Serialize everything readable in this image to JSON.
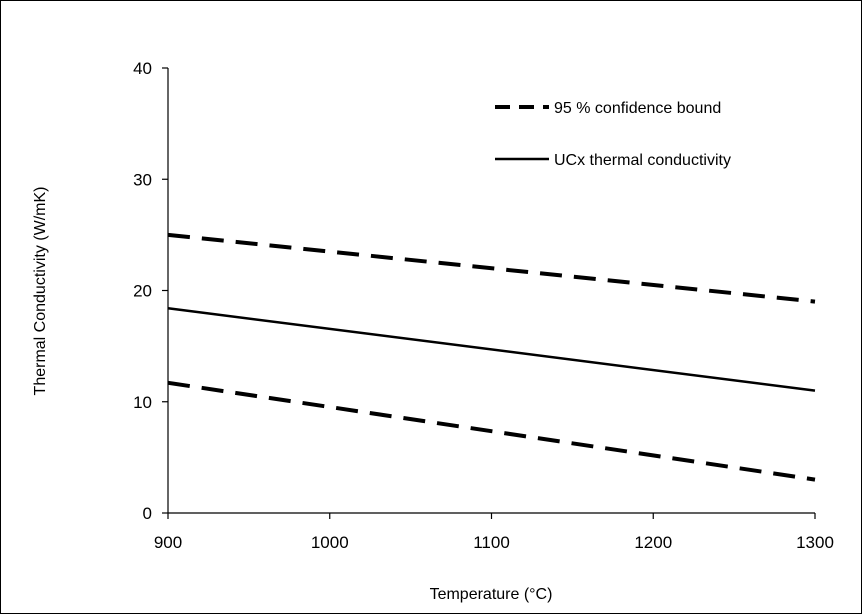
{
  "chart_data": {
    "type": "line",
    "title": "",
    "xlabel": "Temperature (°C)",
    "ylabel": "Thermal Conductivity (W/mK)",
    "xlim": [
      900,
      1300
    ],
    "ylim": [
      0,
      40
    ],
    "xticks": [
      900,
      1000,
      1100,
      1200,
      1300
    ],
    "yticks": [
      0,
      10,
      20,
      30,
      40
    ],
    "grid": false,
    "legend_position": "top-right",
    "series": [
      {
        "name": "95 % confidence bound",
        "style": "dashed",
        "color": "#000000",
        "x": [
          900,
          1300
        ],
        "y": [
          25,
          19
        ]
      },
      {
        "name": "UCx thermal conductivity",
        "style": "solid",
        "color": "#000000",
        "x": [
          900,
          1300
        ],
        "y": [
          18.4,
          11
        ]
      },
      {
        "name": "",
        "style": "dashed",
        "color": "#000000",
        "x": [
          900,
          1300
        ],
        "y": [
          11.7,
          3
        ]
      }
    ]
  }
}
